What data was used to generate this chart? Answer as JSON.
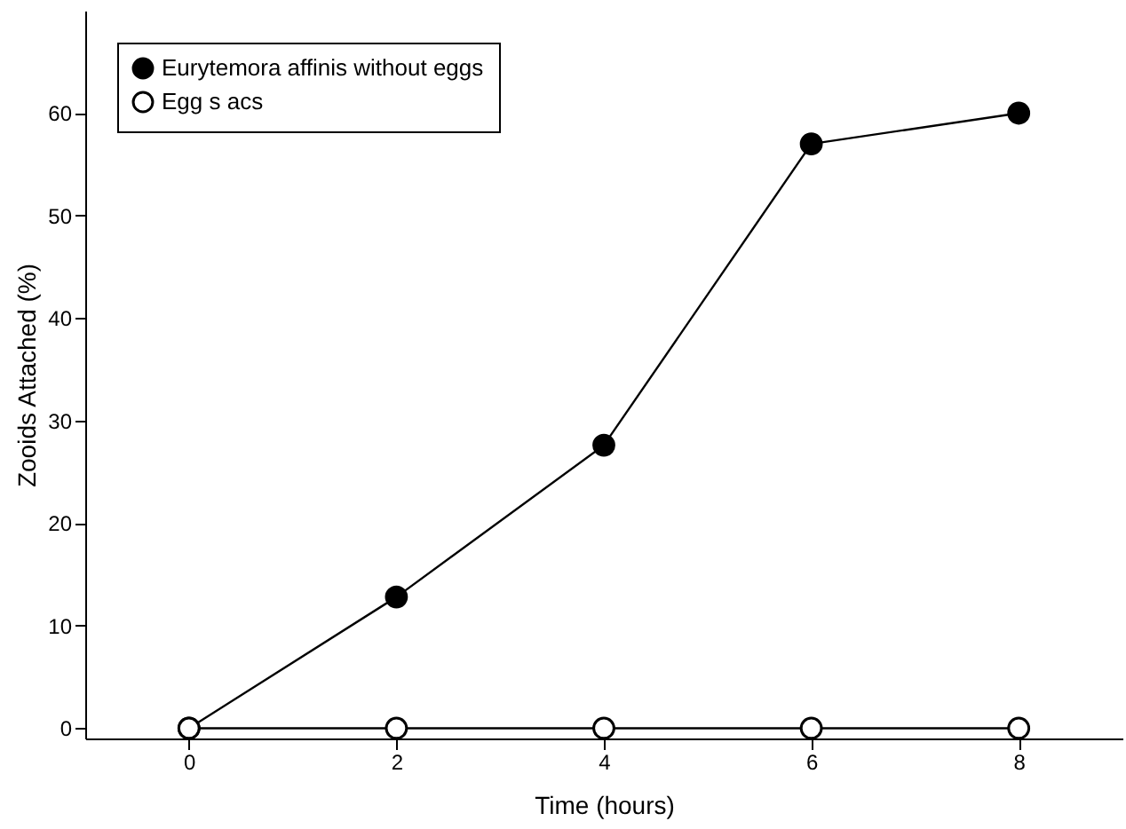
{
  "chart_data": {
    "type": "line",
    "xlabel": "Time (hours)",
    "ylabel": "Zooids Attached (%)",
    "x": [
      0,
      2,
      4,
      6,
      8
    ],
    "series": [
      {
        "name": "Eurytemora affinis without eggs",
        "color": "#000000",
        "values": [
          0,
          12.8,
          27.6,
          57,
          60
        ]
      },
      {
        "name": "Egg s acs",
        "color": "#ffffff",
        "values": [
          0,
          0,
          0,
          0,
          0
        ]
      }
    ],
    "xlim": [
      -1,
      9
    ],
    "xticks": [
      0,
      2,
      4,
      6,
      8
    ],
    "ylim": [
      -1,
      70
    ],
    "yticks": [
      0,
      10,
      20,
      30,
      40,
      50,
      60
    ],
    "grid": false,
    "legend": "top left",
    "marker": "circle",
    "line_style": "solid"
  }
}
